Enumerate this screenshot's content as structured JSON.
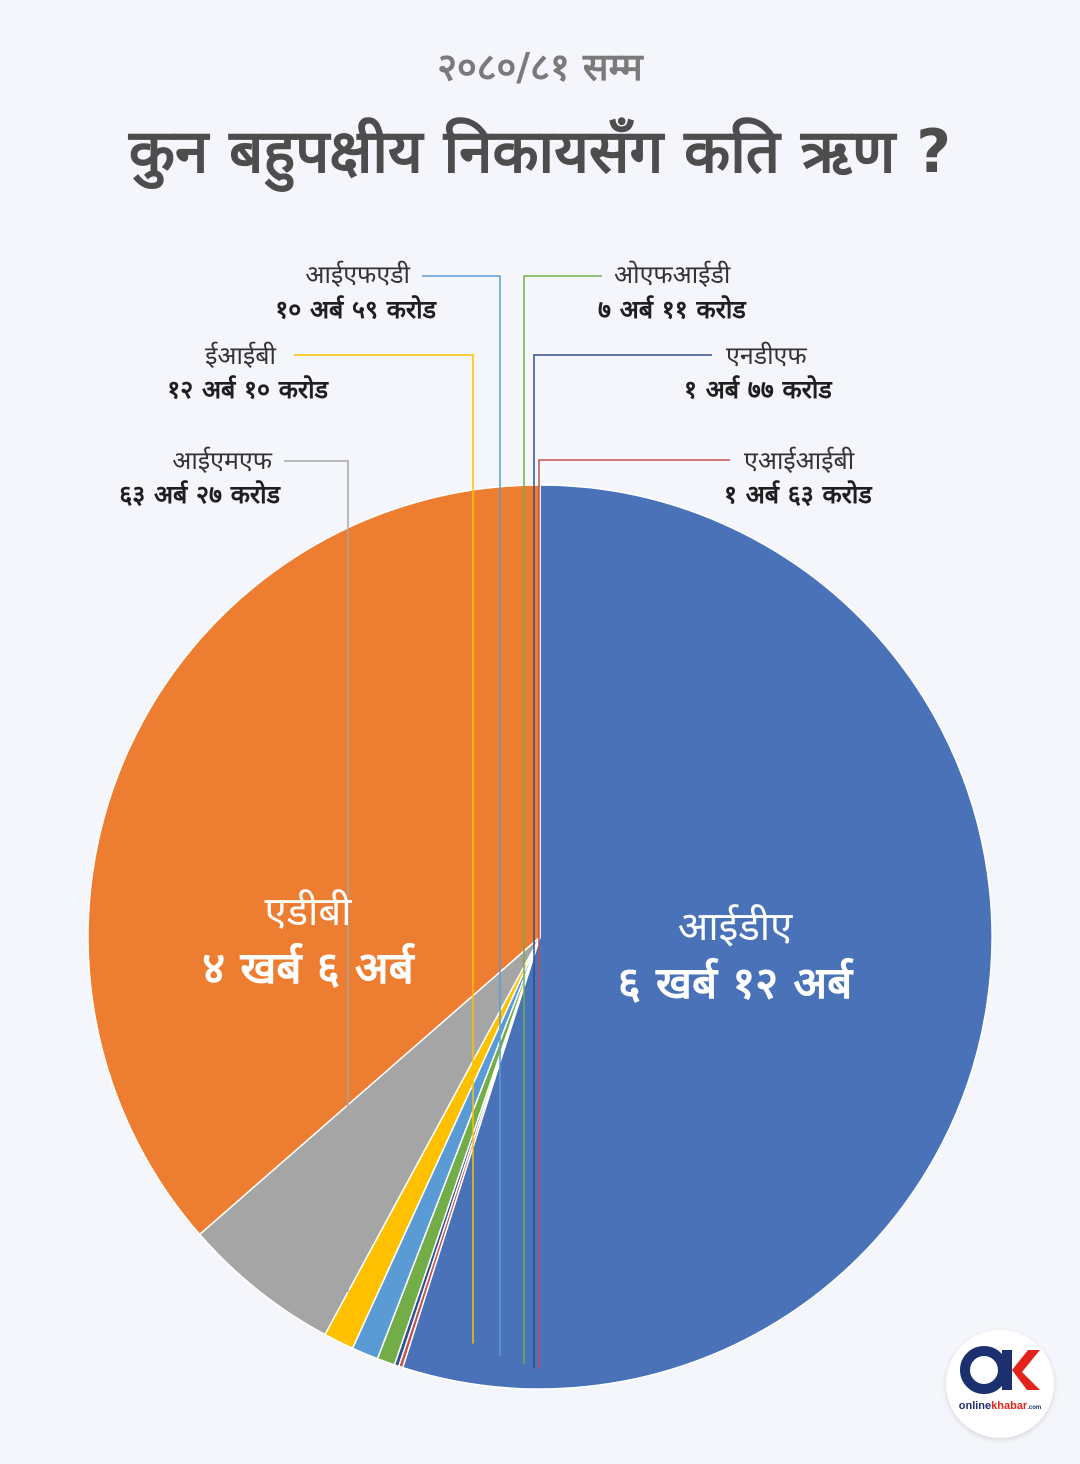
{
  "header": {
    "subtitle": "२०८०/८१ सम्म",
    "title": "कुन बहुपक्षीय निकायसँग कति ऋण ?"
  },
  "chart_data": {
    "type": "pie",
    "unit_note": "values in अर्ब (arba)",
    "slices": [
      {
        "key": "ida",
        "name": "आईडीए",
        "value_label": "६ खर्ब १२ अर्ब",
        "value": 612.0,
        "color": "#4a72b8"
      },
      {
        "key": "aiib",
        "name": "एआईआईबी",
        "value_label": "१ अर्ब ६३ करोड",
        "value": 1.63,
        "color": "#c0504d"
      },
      {
        "key": "ndf",
        "name": "एनडीएफ",
        "value_label": "१ अर्ब ७७ करोड",
        "value": 1.77,
        "color": "#2e4d8a"
      },
      {
        "key": "ofid",
        "name": "ओएफआईडी",
        "value_label": "७ अर्ब ११ करोड",
        "value": 7.11,
        "color": "#72ad47"
      },
      {
        "key": "ifad",
        "name": "आईएफएडी",
        "value_label": "१० अर्ब ५९ करोड",
        "value": 10.59,
        "color": "#5b9bd5"
      },
      {
        "key": "eib",
        "name": "ईआईबी",
        "value_label": "१२ अर्ब १० करोड",
        "value": 12.1,
        "color": "#ffc000"
      },
      {
        "key": "imf",
        "name": "आईएमएफ",
        "value_label": "६३ अर्ब २७ करोड",
        "value": 63.27,
        "color": "#a5a5a5"
      },
      {
        "key": "adb",
        "name": "एडीबी",
        "value_label": "४ खर्ब ६ अर्ब",
        "value": 406.0,
        "color": "#ed7d31"
      }
    ]
  },
  "logo": {
    "brand_prefix": "online",
    "brand_suffix": "khabar",
    "domain": ".com",
    "colors": {
      "blue": "#1c2f6e",
      "red": "#e2231a"
    }
  }
}
